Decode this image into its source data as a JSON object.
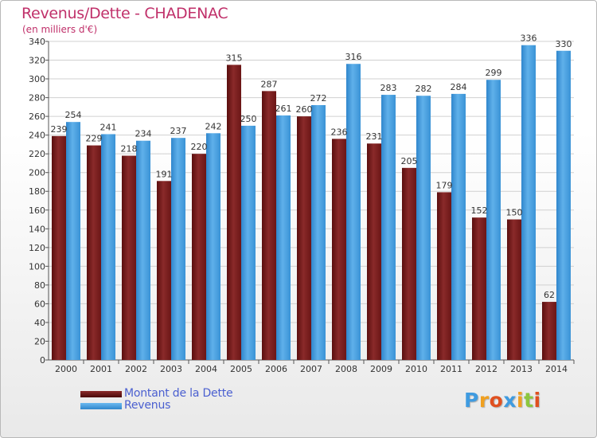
{
  "chart_data": {
    "type": "bar",
    "title": "Revenus/Dette - CHADENAC",
    "subtitle": "(en milliers d'€)",
    "categories": [
      "2000",
      "2001",
      "2002",
      "2003",
      "2004",
      "2005",
      "2006",
      "2007",
      "2008",
      "2009",
      "2010",
      "2011",
      "2012",
      "2013",
      "2014"
    ],
    "series": [
      {
        "name": "Montant de la Dette",
        "color": "#7a1c1c",
        "values": [
          239,
          229,
          218,
          191,
          220,
          315,
          287,
          260,
          236,
          231,
          205,
          179,
          152,
          150,
          62
        ]
      },
      {
        "name": "Revenus",
        "color": "#3f9be0",
        "values": [
          254,
          241,
          234,
          237,
          242,
          250,
          261,
          272,
          316,
          283,
          282,
          284,
          299,
          336,
          330
        ]
      }
    ],
    "ylim": [
      0,
      340
    ],
    "yticks": [
      0,
      20,
      40,
      60,
      80,
      100,
      120,
      140,
      160,
      180,
      200,
      220,
      240,
      260,
      280,
      300,
      320,
      340
    ],
    "grid": true,
    "legend_position": "bottom-left"
  },
  "logo": {
    "letters": [
      "P",
      "r",
      "o",
      "x",
      "i",
      "t",
      "i"
    ],
    "colors": [
      "#3f9be0",
      "#f0a020",
      "#e05020",
      "#3f9be0",
      "#f0a020",
      "#8cc63f",
      "#e05020"
    ]
  }
}
